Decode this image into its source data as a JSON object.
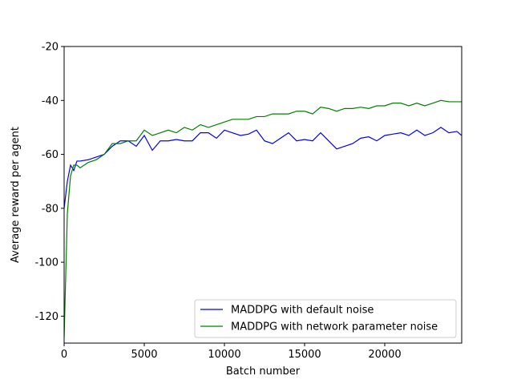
{
  "chart_data": {
    "type": "line",
    "xlabel": "Batch number",
    "ylabel": "Average reward per agent",
    "x": [
      0,
      200,
      400,
      600,
      800,
      1000,
      1500,
      2000,
      2500,
      3000,
      3500,
      4000,
      4500,
      5000,
      5500,
      6000,
      6500,
      7000,
      7500,
      8000,
      8500,
      9000,
      9500,
      10000,
      10500,
      11000,
      11500,
      12000,
      12500,
      13000,
      13500,
      14000,
      14500,
      15000,
      15500,
      16000,
      16500,
      17000,
      17500,
      18000,
      18500,
      19000,
      19500,
      20000,
      20500,
      21000,
      21500,
      22000,
      22500,
      23000,
      23500,
      24000,
      24500,
      24800
    ],
    "series": [
      {
        "name": "MADDPG with default noise",
        "color": "#0000ff",
        "values": [
          -80,
          -70,
          -64,
          -66,
          -62.5,
          -62.5,
          -62,
          -61,
          -60,
          -57,
          -55,
          -55,
          -57,
          -53,
          -58.5,
          -55,
          -55,
          -54.5,
          -55,
          -55,
          -52,
          -52,
          -54,
          -51,
          -52,
          -53,
          -52.5,
          -51,
          -55,
          -56,
          -54,
          -52,
          -55,
          -54.5,
          -55,
          -52,
          -55,
          -58,
          -57,
          -56,
          -54,
          -53.5,
          -55,
          -53,
          -52.5,
          -52,
          -53,
          -51,
          -53,
          -52,
          -50,
          -52,
          -51.5,
          -53
        ]
      },
      {
        "name": "MADDPG with network parameter noise",
        "color": "#008000",
        "values": [
          -128,
          -82,
          -68,
          -64,
          -64,
          -65,
          -63,
          -62,
          -60,
          -56,
          -56,
          -55,
          -55,
          -51,
          -53,
          -52,
          -51,
          -52,
          -50,
          -51,
          -49,
          -50,
          -49,
          -48,
          -47,
          -47,
          -47,
          -46,
          -46,
          -45,
          -45,
          -45,
          -44,
          -44,
          -45,
          -42.5,
          -43,
          -44,
          -43,
          -43,
          -42.5,
          -43,
          -42,
          -42,
          -41,
          -41,
          -42,
          -41,
          -42,
          -41,
          -40,
          -40.5,
          -40.5,
          -40.5
        ]
      }
    ],
    "xlim": [
      0,
      24800
    ],
    "ylim": [
      -130,
      -20
    ],
    "xticks": [
      0,
      5000,
      10000,
      15000,
      20000
    ],
    "yticks": [
      -120,
      -100,
      -80,
      -60,
      -40,
      -20
    ],
    "legend": "lower right"
  }
}
